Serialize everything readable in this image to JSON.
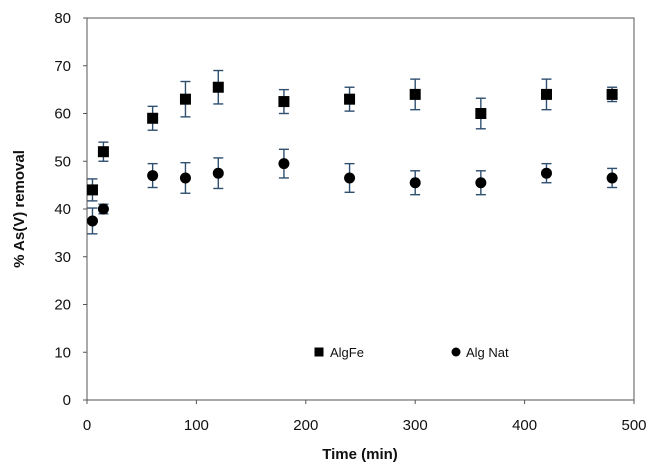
{
  "chart_data": {
    "type": "scatter",
    "title": "",
    "xlabel": "Time (min)",
    "ylabel": "% As(V)  removal",
    "xlim": [
      0,
      500
    ],
    "ylim": [
      0,
      80
    ],
    "x_ticks": [
      "0",
      "100",
      "200",
      "300",
      "400",
      "500"
    ],
    "y_ticks": [
      "0",
      "10",
      "20",
      "30",
      "40",
      "50",
      "60",
      "70",
      "80"
    ],
    "grid": false,
    "legend_position": "bottom-center",
    "series": [
      {
        "name": "AlgFe",
        "marker": "square",
        "color": "#000000",
        "points": [
          {
            "x": 5,
            "y": 44.0,
            "err": 2.3
          },
          {
            "x": 15,
            "y": 52.0,
            "err": 2.0
          },
          {
            "x": 60,
            "y": 59.0,
            "err": 2.5
          },
          {
            "x": 90,
            "y": 63.0,
            "err": 3.7
          },
          {
            "x": 120,
            "y": 65.5,
            "err": 3.5
          },
          {
            "x": 180,
            "y": 62.5,
            "err": 2.5
          },
          {
            "x": 240,
            "y": 63.0,
            "err": 2.5
          },
          {
            "x": 300,
            "y": 64.0,
            "err": 3.2
          },
          {
            "x": 360,
            "y": 60.0,
            "err": 3.2
          },
          {
            "x": 420,
            "y": 64.0,
            "err": 3.2
          },
          {
            "x": 480,
            "y": 64.0,
            "err": 1.5
          }
        ]
      },
      {
        "name": "Alg Nat",
        "marker": "circle",
        "color": "#000000",
        "points": [
          {
            "x": 5,
            "y": 37.5,
            "err": 2.7
          },
          {
            "x": 15,
            "y": 40.0,
            "err": 1.0
          },
          {
            "x": 60,
            "y": 47.0,
            "err": 2.5
          },
          {
            "x": 90,
            "y": 46.5,
            "err": 3.2
          },
          {
            "x": 120,
            "y": 47.5,
            "err": 3.2
          },
          {
            "x": 180,
            "y": 49.5,
            "err": 3.0
          },
          {
            "x": 240,
            "y": 46.5,
            "err": 3.0
          },
          {
            "x": 300,
            "y": 45.5,
            "err": 2.5
          },
          {
            "x": 360,
            "y": 45.5,
            "err": 2.5
          },
          {
            "x": 420,
            "y": 47.5,
            "err": 2.0
          },
          {
            "x": 480,
            "y": 46.5,
            "err": 2.0
          }
        ]
      }
    ]
  }
}
